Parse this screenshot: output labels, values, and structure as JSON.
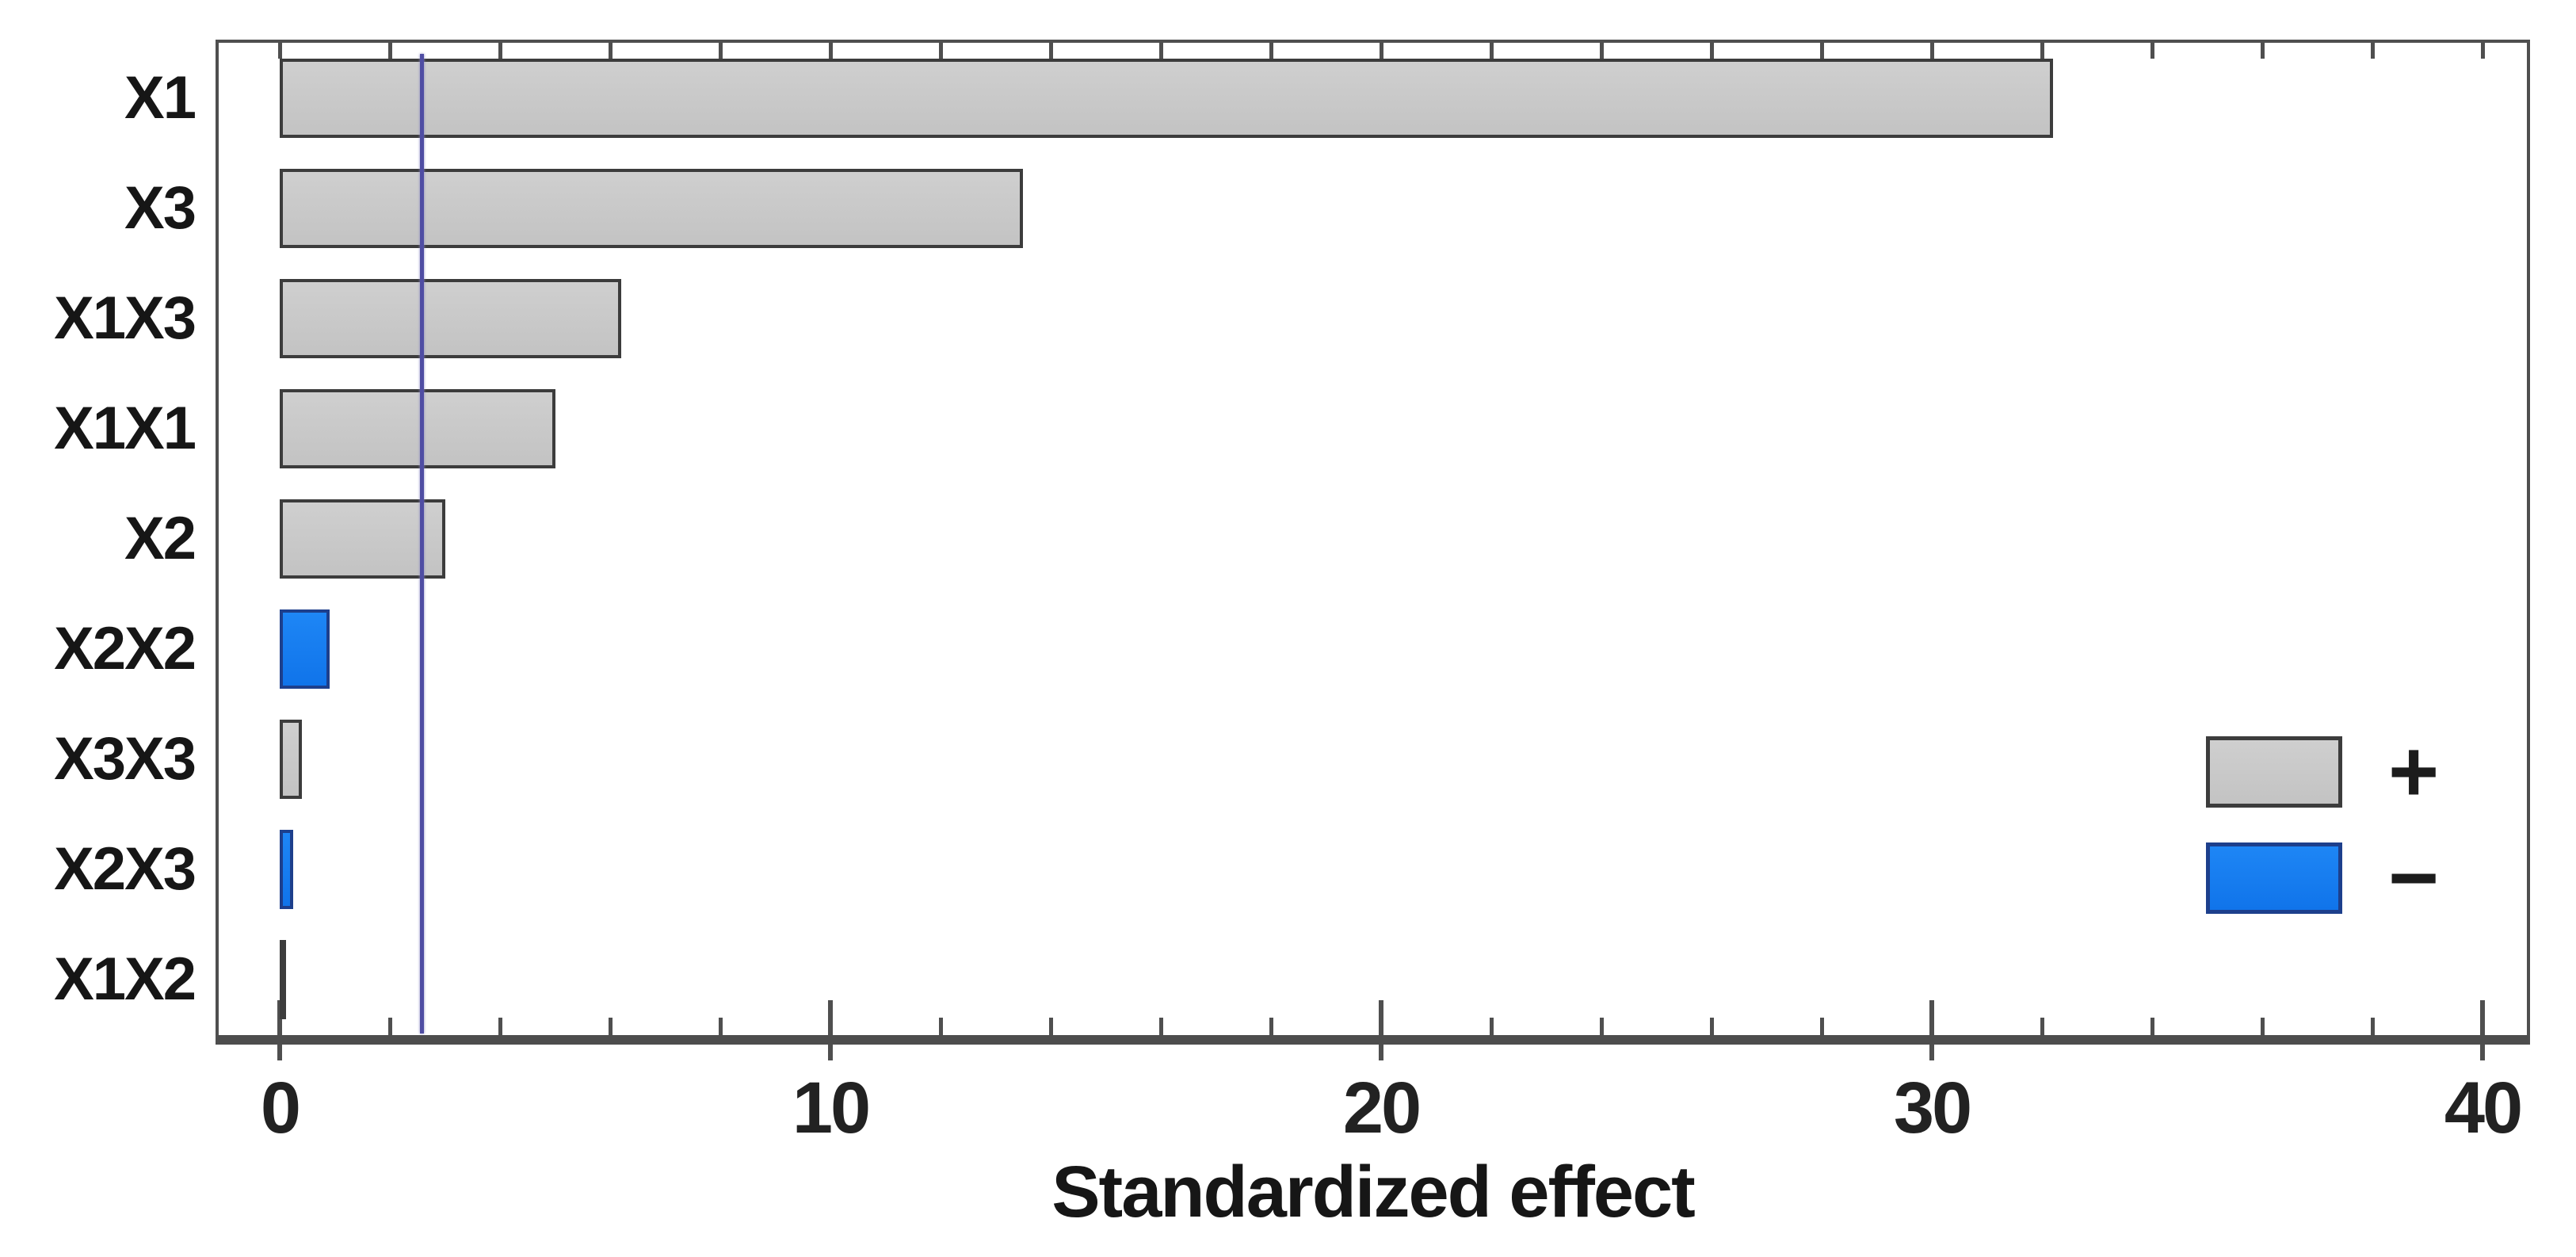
{
  "chart_data": {
    "type": "bar",
    "orientation": "horizontal",
    "title": "",
    "xlabel": "Standardized effect",
    "categories": [
      "X1",
      "X3",
      "X1X3",
      "X1X1",
      "X2",
      "X2X2",
      "X3X3",
      "X2X3",
      "X1X2"
    ],
    "values": [
      32.2,
      13.5,
      6.2,
      5.0,
      3.0,
      0.9,
      0.4,
      0.25,
      0.07
    ],
    "signs": [
      "+",
      "+",
      "+",
      "+",
      "+",
      "-",
      "+",
      "-",
      "+"
    ],
    "reference_line": {
      "value": 2.57,
      "color": "#4f4da3"
    },
    "xticks": [
      0,
      10,
      20,
      30,
      40
    ],
    "xtick_labels": [
      "0",
      "10",
      "20",
      "30",
      "40"
    ],
    "minor_tick_step": 2,
    "xlim": [
      -1.2,
      41.1
    ],
    "grid": false,
    "legend_position": "inside-right",
    "legend": [
      {
        "label": "+",
        "color": "#c6c6c6"
      },
      {
        "label": "−",
        "color": "#127df0"
      }
    ],
    "colors": {
      "positive_fill": "#c6c6c6",
      "positive_border": "#3c3c3c",
      "negative_fill": "#127df0",
      "negative_border": "#1d3f8c",
      "frame": "#4f4f4f",
      "background": "#ffffff"
    }
  }
}
